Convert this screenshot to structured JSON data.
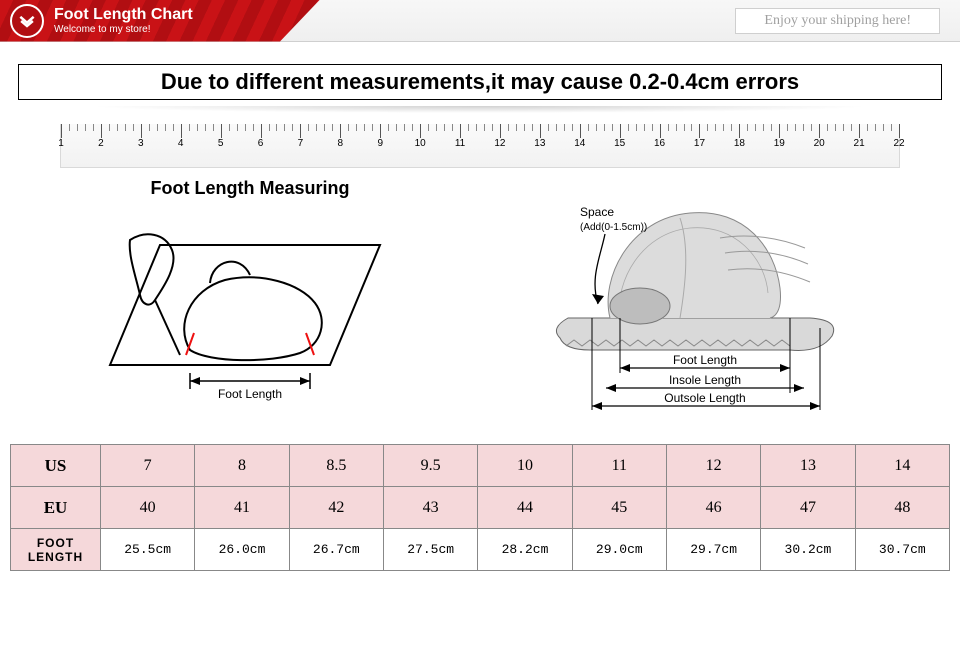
{
  "header": {
    "title": "Foot Length Chart",
    "subtitle": "Welcome to my store!",
    "enjoy": "Enjoy your shipping here!",
    "band_color_a": "#c91216",
    "band_color_b": "#b10e12"
  },
  "notice": "Due to different measurements,it may cause 0.2-0.4cm errors",
  "ruler": {
    "major_start": 1,
    "major_end": 22,
    "minor_per_major": 5
  },
  "diagram_left": {
    "title": "Foot Length Measuring",
    "label": "Foot Length"
  },
  "diagram_right": {
    "space_label": "Space",
    "space_sub": "(Add(0-1.5cm))",
    "foot_label": "Foot Length",
    "insole_label": "Insole Length",
    "outsole_label": "Outsole Length"
  },
  "size_table": {
    "row_headers": [
      "US",
      "EU",
      "FOOT LENGTH"
    ],
    "us": [
      "7",
      "8",
      "8.5",
      "9.5",
      "10",
      "11",
      "12",
      "13",
      "14"
    ],
    "eu": [
      "40",
      "41",
      "42",
      "43",
      "44",
      "45",
      "46",
      "47",
      "48"
    ],
    "foot": [
      "25.5cm",
      "26.0cm",
      "26.7cm",
      "27.5cm",
      "28.2cm",
      "29.0cm",
      "29.7cm",
      "30.2cm",
      "30.7cm"
    ],
    "header_bg": "#f5d8da"
  }
}
